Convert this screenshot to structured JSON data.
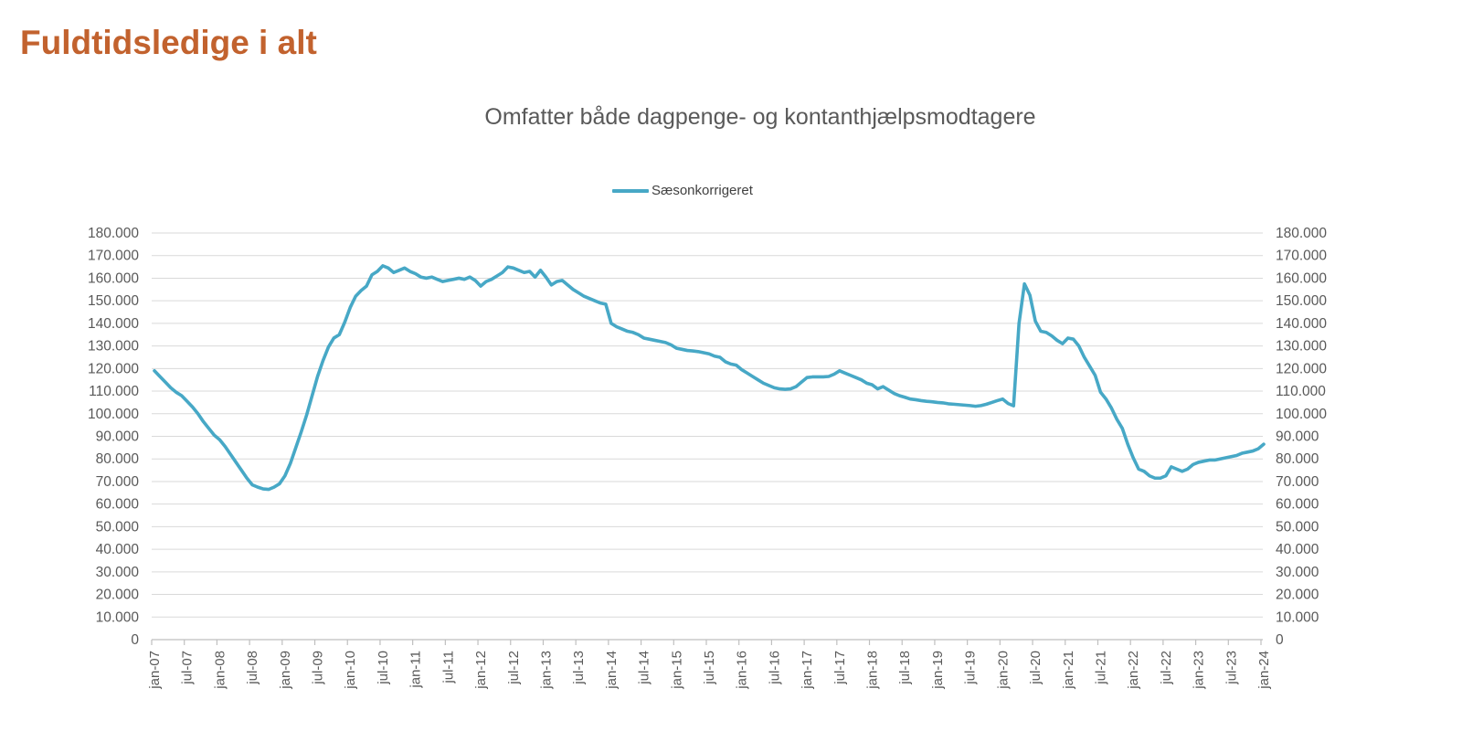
{
  "page": {
    "title": "Fuldtidsledige i alt"
  },
  "chart_data": {
    "type": "line",
    "title": "Omfatter både dagpenge- og kontanthjælpsmodtagere",
    "xlabel": "",
    "ylabel": "",
    "ylim": [
      0,
      180000
    ],
    "y_step": 10000,
    "grid": true,
    "legend_position": "top-center",
    "y_tick_labels": [
      "0",
      "10.000",
      "20.000",
      "30.000",
      "40.000",
      "50.000",
      "60.000",
      "70.000",
      "80.000",
      "90.000",
      "100.000",
      "110.000",
      "120.000",
      "130.000",
      "140.000",
      "150.000",
      "160.000",
      "170.000",
      "180.000"
    ],
    "y_axis_sides": [
      "left",
      "right"
    ],
    "x_tick_labels": [
      "jan-07",
      "jul-07",
      "jan-08",
      "jul-08",
      "jan-09",
      "jul-09",
      "jan-10",
      "jul-10",
      "jan-11",
      "jul-11",
      "jan-12",
      "jul-12",
      "jan-13",
      "jul-13",
      "jan-14",
      "jul-14",
      "jan-15",
      "jul-15",
      "jan-16",
      "jul-16",
      "jan-17",
      "jul-17",
      "jan-18",
      "jul-18",
      "jan-19",
      "jul-19",
      "jan-20",
      "jul-20",
      "jan-21",
      "jul-21",
      "jan-22",
      "jul-22",
      "jan-23",
      "jul-23",
      "jan-24"
    ],
    "x_unit": "month",
    "x_range": "jan-07 to jan-24",
    "series": [
      {
        "name": "Sæsonkorrigeret",
        "color": "#47A8C6",
        "values": [
          119000,
          116500,
          114000,
          111500,
          109500,
          108000,
          105500,
          103000,
          100000,
          96500,
          93500,
          90500,
          88500,
          85500,
          82000,
          78500,
          75000,
          71500,
          68500,
          67500,
          66700,
          66500,
          67500,
          69000,
          72500,
          78000,
          85000,
          92000,
          99500,
          108000,
          116500,
          123500,
          129500,
          133500,
          135000,
          140500,
          147000,
          152000,
          154500,
          156500,
          161500,
          163000,
          165500,
          164500,
          162500,
          163500,
          164500,
          163000,
          162000,
          160500,
          160000,
          160500,
          159500,
          158500,
          159000,
          159500,
          160000,
          159500,
          160500,
          159000,
          156500,
          158500,
          159500,
          161000,
          162500,
          165000,
          164500,
          163500,
          162500,
          163000,
          160500,
          163500,
          160500,
          157000,
          158500,
          159000,
          157000,
          155000,
          153500,
          152000,
          151000,
          150000,
          149000,
          148500,
          140000,
          138500,
          137500,
          136500,
          136000,
          135000,
          133500,
          133000,
          132500,
          132000,
          131500,
          130500,
          129000,
          128500,
          128000,
          127800,
          127500,
          127000,
          126500,
          125500,
          125000,
          123000,
          122000,
          121500,
          119500,
          118000,
          116500,
          115000,
          113500,
          112500,
          111500,
          111000,
          110800,
          111000,
          112000,
          114000,
          116000,
          116300,
          116300,
          116300,
          116500,
          117500,
          119000,
          118000,
          117000,
          116000,
          115000,
          113500,
          112800,
          111000,
          112000,
          110500,
          109000,
          108000,
          107300,
          106500,
          106200,
          105800,
          105500,
          105300,
          105000,
          104800,
          104400,
          104200,
          104000,
          103800,
          103600,
          103300,
          103600,
          104200,
          105000,
          105800,
          106500,
          104500,
          103500,
          140000,
          157500,
          152500,
          141000,
          136500,
          136000,
          134500,
          132500,
          131000,
          133500,
          133000,
          130000,
          125000,
          121000,
          117000,
          109500,
          106500,
          102500,
          97500,
          93500,
          86500,
          80500,
          75500,
          74500,
          72500,
          71500,
          71500,
          72500,
          76500,
          75500,
          74500,
          75500,
          77500,
          78500,
          79000,
          79500,
          79500,
          80000,
          80500,
          81000,
          81500,
          82500,
          83000,
          83500,
          84500,
          86500
        ]
      }
    ]
  },
  "colors": {
    "title": "#C2622E",
    "chart_title": "#595959",
    "axis_text": "#595959",
    "legend_text": "#404040",
    "gridline": "#D9D9D9",
    "axis_line": "#BFBFBF",
    "line": "#47A8C6",
    "background": "#FFFFFF"
  }
}
